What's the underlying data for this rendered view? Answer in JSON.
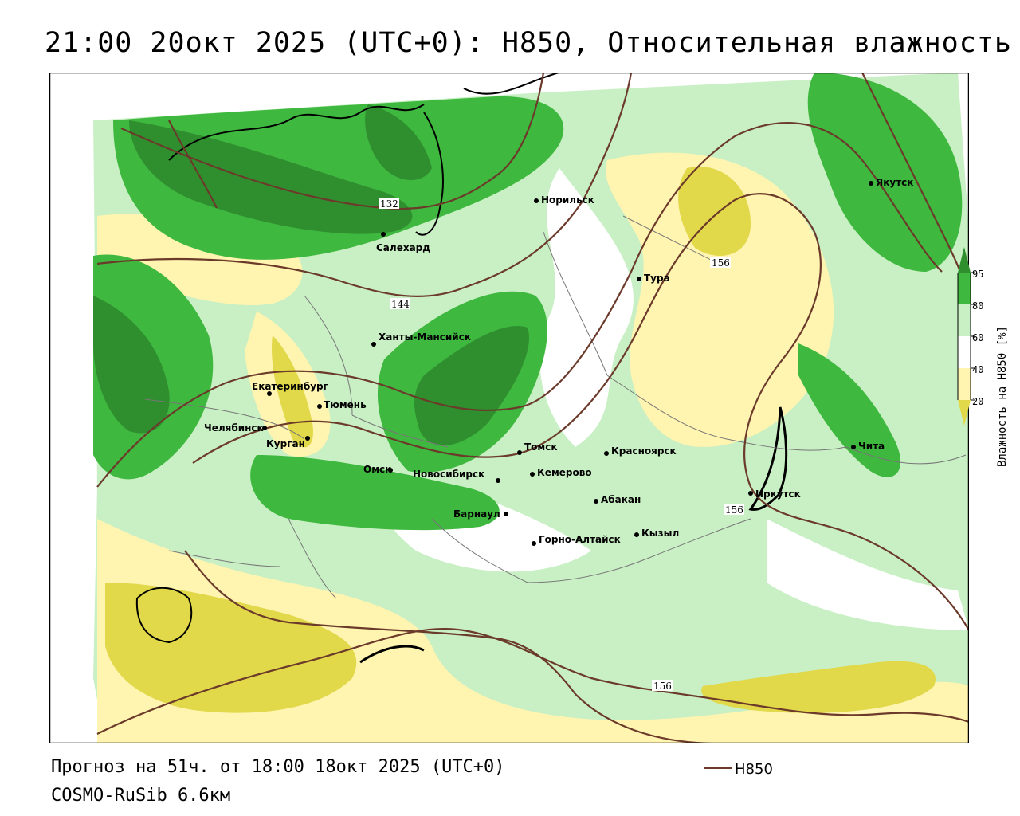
{
  "header": {
    "title": "21:00 20окт 2025 (UTC+0): H850, Относительная влажность"
  },
  "footer": {
    "forecast": "Прогноз на 51ч. от 18:00 18окт 2025 (UTC+0)",
    "model": "COSMO-RuSib 6.6км",
    "legend_line_label": "H850"
  },
  "colorbar": {
    "title": "Влажность на H850 [%]",
    "ticks": [
      "95",
      "80",
      "60",
      "40",
      "20"
    ],
    "colors": {
      "95": "#2f8f2f",
      "80": "#3fb83f",
      "60": "#c9f0c4",
      "40": "#fff4b0",
      "20": "#e1d84a"
    }
  },
  "map": {
    "cities": [
      {
        "name": "Якутск",
        "id": "yakutsk"
      },
      {
        "name": "Норильск",
        "id": "norilsk"
      },
      {
        "name": "Салехард",
        "id": "salekhard"
      },
      {
        "name": "Тура",
        "id": "tura"
      },
      {
        "name": "Ханты-Мансийск",
        "id": "khanty"
      },
      {
        "name": "Екатеринбург",
        "id": "ekat"
      },
      {
        "name": "Тюмень",
        "id": "tyumen"
      },
      {
        "name": "Челябинск",
        "id": "chelyab"
      },
      {
        "name": "Курган",
        "id": "kurgan"
      },
      {
        "name": "Омск",
        "id": "omsk"
      },
      {
        "name": "Новосибирск",
        "id": "novosib"
      },
      {
        "name": "Томск",
        "id": "tomsk"
      },
      {
        "name": "Кемерово",
        "id": "kemerovo"
      },
      {
        "name": "Красноярск",
        "id": "krasnoyarsk"
      },
      {
        "name": "Барнаул",
        "id": "barnaul"
      },
      {
        "name": "Абакан",
        "id": "abakan"
      },
      {
        "name": "Горно-Алтайск",
        "id": "gorno"
      },
      {
        "name": "Кызыл",
        "id": "kyzyl"
      },
      {
        "name": "Иркутск",
        "id": "irkutsk"
      },
      {
        "name": "Чита",
        "id": "chita"
      }
    ],
    "isoline_labels": [
      "132",
      "144",
      "156",
      "156",
      "156"
    ],
    "colors": {
      "isoline": "#6b3a2a",
      "green_dark": "#2f8f2f",
      "green_mid": "#3fb83f",
      "green_light": "#c9f0c4",
      "yellow_light": "#fff4b0",
      "yellow_dark": "#e1d84a"
    }
  }
}
